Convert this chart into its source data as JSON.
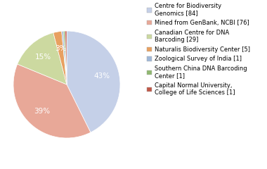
{
  "labels": [
    "Centre for Biodiversity\nGenomics [84]",
    "Mined from GenBank, NCBI [76]",
    "Canadian Centre for DNA\nBarcoding [29]",
    "Naturalis Biodiversity Center [5]",
    "Zoological Survey of India [1]",
    "Southern China DNA Barcoding\nCenter [1]",
    "Capital Normal University,\nCollege of Life Sciences [1]"
  ],
  "values": [
    84,
    76,
    29,
    5,
    1,
    1,
    1
  ],
  "colors": [
    "#c5d0e8",
    "#e8a898",
    "#ccd9a0",
    "#e8a060",
    "#a0b8d8",
    "#90b870",
    "#c05848"
  ],
  "legend_labels": [
    "Centre for Biodiversity\nGenomics [84]",
    "Mined from GenBank, NCBI [76]",
    "Canadian Centre for DNA\nBarcoding [29]",
    "Naturalis Biodiversity Center [5]",
    "Zoological Survey of India [1]",
    "Southern China DNA Barcoding\nCenter [1]",
    "Capital Normal University,\nCollege of Life Sciences [1]"
  ],
  "background_color": "#ffffff",
  "text_color": "#ffffff",
  "pct_fontsize": 7.5,
  "legend_fontsize": 6.0
}
